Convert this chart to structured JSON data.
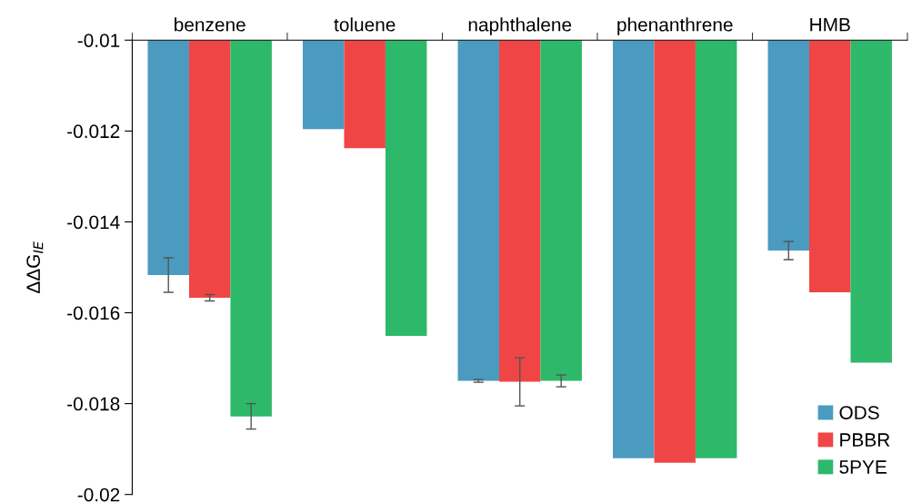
{
  "chart_data": {
    "type": "bar",
    "ylabel": "ΔΔG$_{IE}$",
    "categories": [
      "benzene",
      "toluene",
      "naphthalene",
      "phenanthrene",
      "HMB"
    ],
    "ylim": [
      -0.02,
      -0.01
    ],
    "yticks": [
      -0.02,
      -0.018,
      -0.016,
      -0.014,
      -0.012,
      -0.01
    ],
    "grid": false,
    "legend": "bottom right",
    "series": [
      {
        "name": "ODS",
        "color": "#4a9bbf",
        "values": [
          -0.01517,
          -0.01196,
          -0.0175,
          -0.0192,
          -0.01463
        ],
        "errors": [
          0.00038,
          null,
          3e-05,
          null,
          0.0002
        ]
      },
      {
        "name": "PBBR",
        "color": "#f04545",
        "values": [
          -0.01567,
          -0.01238,
          -0.01752,
          -0.0193,
          -0.01555
        ],
        "errors": [
          7e-05,
          null,
          0.00053,
          null,
          null
        ]
      },
      {
        "name": "5PYE",
        "color": "#2eb86a",
        "values": [
          -0.01828,
          -0.01651,
          -0.0175,
          -0.0192,
          -0.0171
        ],
        "errors": [
          0.00028,
          null,
          0.00013,
          null,
          null
        ]
      }
    ]
  }
}
